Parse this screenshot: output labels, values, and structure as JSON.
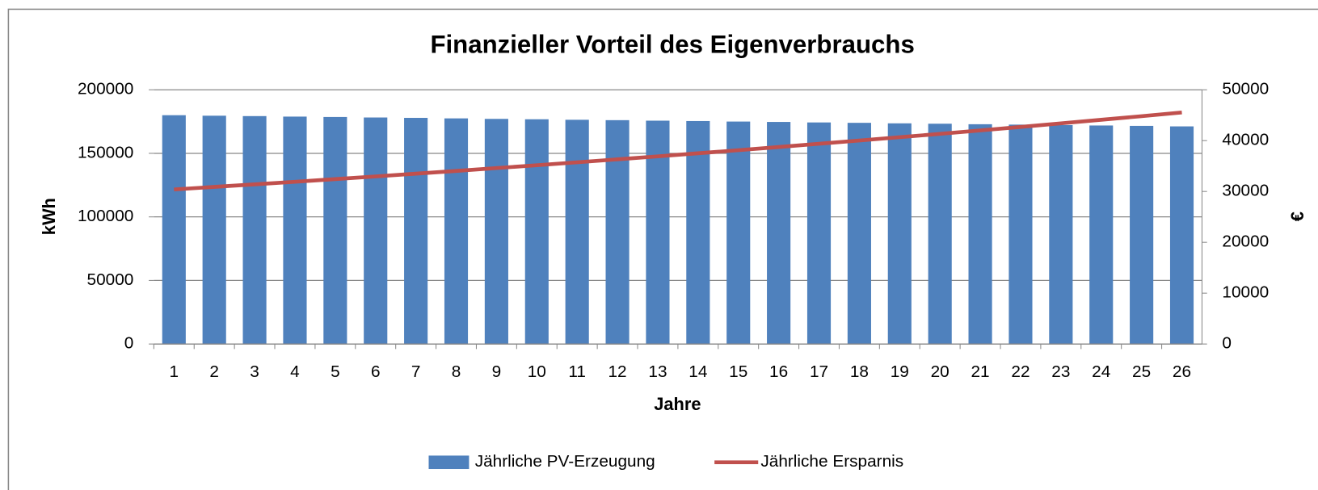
{
  "chart_data": {
    "type": "bar",
    "title": "Finanzieller Vorteil des Eigenverbrauchs",
    "x_label": "Jahre",
    "y_label": "kWh",
    "y2_label": "€",
    "categories": [
      1,
      2,
      3,
      4,
      5,
      6,
      7,
      8,
      9,
      10,
      11,
      12,
      13,
      14,
      15,
      16,
      17,
      18,
      19,
      20,
      21,
      22,
      23,
      24,
      25,
      26
    ],
    "series": [
      {
        "name": "Jährliche PV-Erzeugung",
        "type": "bar",
        "color": "#4f81bd",
        "values": [
          180000,
          179600,
          179300,
          178900,
          178600,
          178200,
          177900,
          177500,
          177100,
          176800,
          176400,
          176100,
          175700,
          175400,
          175000,
          174700,
          174300,
          174000,
          173600,
          173300,
          172900,
          172600,
          172200,
          171900,
          171600,
          171200
        ]
      },
      {
        "name": "Jährliche Ersparnis",
        "type": "line",
        "axis": "y2",
        "color": "#c0504d",
        "values": [
          30400,
          30900,
          31400,
          31910,
          32430,
          32960,
          33500,
          34040,
          34600,
          35160,
          35740,
          36320,
          36910,
          37510,
          38120,
          38740,
          39380,
          40020,
          40670,
          41330,
          42010,
          42690,
          43390,
          44100,
          44810,
          45540
        ]
      }
    ],
    "ylim": [
      0,
      200000
    ],
    "yticks": [
      0,
      50000,
      100000,
      150000,
      200000
    ],
    "y2lim": [
      0,
      50000
    ],
    "y2ticks": [
      0,
      10000,
      20000,
      30000,
      40000,
      50000
    ],
    "grid": true,
    "legend": "bottom"
  }
}
